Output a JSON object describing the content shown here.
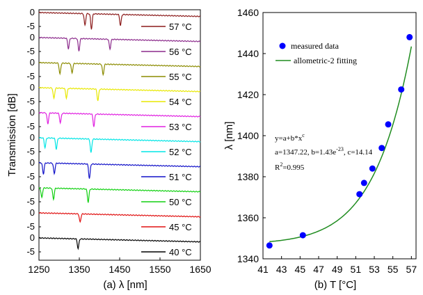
{
  "chart_data": [
    {
      "type": "line",
      "caption": "(a) λ [nm]",
      "xlabel": "λ [nm]",
      "ylabel": "Transmission [dB]",
      "xlim": [
        1250,
        1650
      ],
      "x_ticks": [
        "1250",
        "1350",
        "1450",
        "1550",
        "1650"
      ],
      "y_tick_labels": [
        "0",
        "-5"
      ],
      "panel_ylim": [
        -8,
        1
      ],
      "panels": [
        {
          "label": "57 °C",
          "color": "#8b1a1a",
          "dips": [
            [
              1364,
              4.2
            ],
            [
              1380,
              5.5
            ],
            [
              1452,
              4.0
            ]
          ]
        },
        {
          "label": "56 °C",
          "color": "#8b2a8b",
          "dips": [
            [
              1323,
              3.8
            ],
            [
              1349,
              4.5
            ],
            [
              1426,
              3.5
            ]
          ]
        },
        {
          "label": "55 °C",
          "color": "#8b8b00",
          "dips": [
            [
              1302,
              4.0
            ],
            [
              1332,
              3.5
            ],
            [
              1409,
              3.8
            ]
          ]
        },
        {
          "label": "54 °C",
          "color": "#e8e800",
          "dips": [
            [
              1287,
              3.8
            ],
            [
              1318,
              3.5
            ],
            [
              1396,
              4.2
            ]
          ]
        },
        {
          "label": "53 °C",
          "color": "#e020e0",
          "dips": [
            [
              1272,
              4.0
            ],
            [
              1303,
              3.5
            ],
            [
              1386,
              4.5
            ]
          ]
        },
        {
          "label": "52 °C",
          "color": "#00e5e5",
          "dips": [
            [
              1265,
              3.5
            ],
            [
              1293,
              4.0
            ],
            [
              1379,
              5.0
            ]
          ]
        },
        {
          "label": "51 °C",
          "color": "#1010c8",
          "dips": [
            [
              1261,
              4.0
            ],
            [
              1288,
              3.8
            ],
            [
              1375,
              5.2
            ]
          ]
        },
        {
          "label": "50 °C",
          "color": "#10d010",
          "dips": [
            [
              1257,
              3.5
            ],
            [
              1286,
              4.0
            ],
            [
              1372,
              4.8
            ]
          ]
        },
        {
          "label": "45 °C",
          "color": "#e01010",
          "dips": [
            [
              1352,
              3.0
            ]
          ]
        },
        {
          "label": "40 °C",
          "color": "#000000",
          "dips": [
            [
              1347,
              3.5
            ]
          ]
        }
      ]
    },
    {
      "type": "scatter",
      "caption": "(b) T [°C]",
      "xlabel": "T [°C]",
      "ylabel": "λ [nm]",
      "xlim": [
        41,
        57.5
      ],
      "ylim": [
        1340,
        1460
      ],
      "x_ticks": [
        "41",
        "43",
        "45",
        "47",
        "49",
        "51",
        "53",
        "55",
        "57"
      ],
      "y_ticks": [
        "1340",
        "1360",
        "1380",
        "1400",
        "1420",
        "1440",
        "1460"
      ],
      "series": [
        {
          "name": "measured data",
          "color": "#0000ff",
          "x": [
            41.7,
            45.3,
            51.4,
            51.9,
            52.8,
            53.8,
            54.5,
            55.9,
            56.8
          ],
          "y": [
            1346.5,
            1351.5,
            1371.5,
            1377,
            1384,
            1394,
            1405.5,
            1422.5,
            1448
          ]
        },
        {
          "name": "allometric-2 fitting",
          "color": "#1f8c1f",
          "fit": {
            "a": 1347.22,
            "b": 1.43e-23,
            "c": 14.14
          },
          "x_range": [
            41.7,
            57
          ]
        }
      ],
      "legend_position": "top",
      "annotation": {
        "equation": "y=a+b*x",
        "equation_sup": "c",
        "params_prefix": "a=1347.22, b=1.43e",
        "params_sup": "-23",
        "params_suffix": ", c=14.14",
        "r2_prefix": "R",
        "r2_sup": "2",
        "r2_suffix": "=0.995"
      }
    }
  ]
}
